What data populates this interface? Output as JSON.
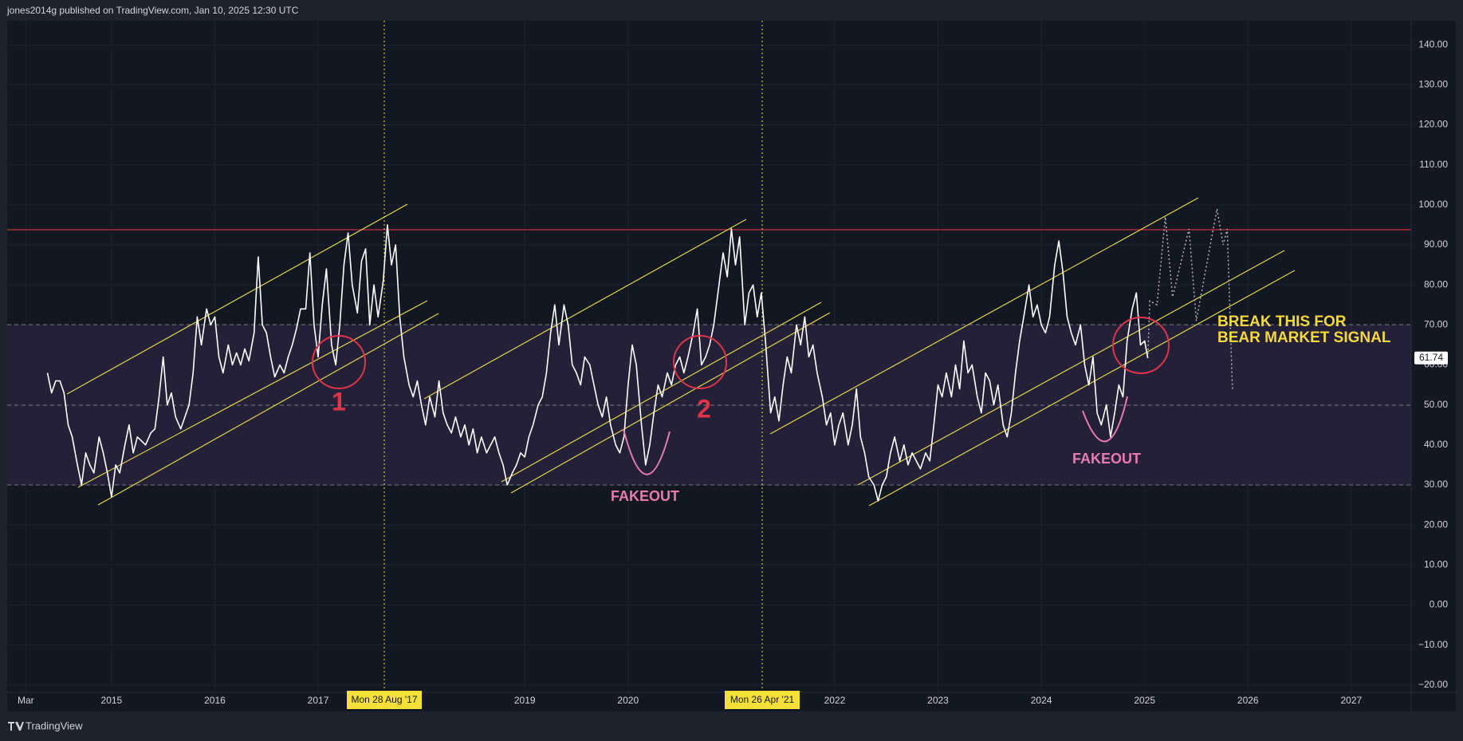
{
  "header": "jones2014g published on TradingView.com, Jan 10, 2025 12:30 UTC",
  "brand": "TradingView",
  "chart_data": {
    "type": "line",
    "x": [
      2014.38,
      2014.42,
      2014.46,
      2014.5,
      2014.54,
      2014.58,
      2014.62,
      2014.67,
      2014.71,
      2014.75,
      2014.79,
      2014.83,
      2014.88,
      2014.92,
      2014.96,
      2015.0,
      2015.04,
      2015.08,
      2015.13,
      2015.17,
      2015.21,
      2015.25,
      2015.33,
      2015.38,
      2015.42,
      2015.46,
      2015.5,
      2015.54,
      2015.58,
      2015.62,
      2015.67,
      2015.71,
      2015.75,
      2015.79,
      2015.83,
      2015.87,
      2015.92,
      2015.96,
      2016.0,
      2016.04,
      2016.08,
      2016.13,
      2016.17,
      2016.21,
      2016.25,
      2016.29,
      2016.33,
      2016.38,
      2016.42,
      2016.46,
      2016.5,
      2016.54,
      2016.58,
      2016.63,
      2016.67,
      2016.71,
      2016.75,
      2016.79,
      2016.83,
      2016.88,
      2016.92,
      2016.96,
      2017.0,
      2017.04,
      2017.08,
      2017.13,
      2017.17,
      2017.21,
      2017.25,
      2017.29,
      2017.33,
      2017.38,
      2017.42,
      2017.46,
      2017.5,
      2017.54,
      2017.58,
      2017.63,
      2017.67,
      2017.71,
      2017.75,
      2017.79,
      2017.83,
      2017.88,
      2017.92,
      2017.96,
      2018.0,
      2018.04,
      2018.08,
      2018.13,
      2018.17,
      2018.21,
      2018.25,
      2018.29,
      2018.33,
      2018.38,
      2018.42,
      2018.46,
      2018.5,
      2018.54,
      2018.58,
      2018.63,
      2018.67,
      2018.71,
      2018.75,
      2018.79,
      2018.83,
      2018.88,
      2018.92,
      2018.96,
      2019.0,
      2019.04,
      2019.08,
      2019.13,
      2019.17,
      2019.21,
      2019.25,
      2019.29,
      2019.33,
      2019.38,
      2019.42,
      2019.46,
      2019.5,
      2019.54,
      2019.58,
      2019.63,
      2019.67,
      2019.71,
      2019.75,
      2019.79,
      2019.83,
      2019.88,
      2019.92,
      2019.96,
      2020.0,
      2020.04,
      2020.08,
      2020.13,
      2020.17,
      2020.21,
      2020.25,
      2020.29,
      2020.33,
      2020.38,
      2020.42,
      2020.46,
      2020.5,
      2020.54,
      2020.58,
      2020.63,
      2020.67,
      2020.71,
      2020.75,
      2020.79,
      2020.83,
      2020.88,
      2020.92,
      2020.96,
      2021.0,
      2021.04,
      2021.08,
      2021.13,
      2021.17,
      2021.21,
      2021.25,
      2021.29,
      2021.33,
      2021.38,
      2021.42,
      2021.46,
      2021.5,
      2021.54,
      2021.58,
      2021.63,
      2021.67,
      2021.71,
      2021.75,
      2021.79,
      2021.83,
      2021.88,
      2021.92,
      2021.96,
      2022.0,
      2022.04,
      2022.08,
      2022.13,
      2022.17,
      2022.21,
      2022.25,
      2022.29,
      2022.33,
      2022.38,
      2022.42,
      2022.46,
      2022.5,
      2022.54,
      2022.58,
      2022.63,
      2022.67,
      2022.71,
      2022.75,
      2022.79,
      2022.83,
      2022.88,
      2022.92,
      2022.96,
      2023.0,
      2023.04,
      2023.08,
      2023.13,
      2023.17,
      2023.21,
      2023.25,
      2023.29,
      2023.33,
      2023.38,
      2023.42,
      2023.46,
      2023.5,
      2023.54,
      2023.58,
      2023.63,
      2023.67,
      2023.71,
      2023.75,
      2023.79,
      2023.83,
      2023.88,
      2023.92,
      2023.96,
      2024.0,
      2024.04,
      2024.08,
      2024.13,
      2024.17,
      2024.21,
      2024.25,
      2024.29,
      2024.33,
      2024.38,
      2024.42,
      2024.46,
      2024.5,
      2024.54,
      2024.58,
      2024.63,
      2024.67,
      2024.71,
      2024.75,
      2024.79,
      2024.83,
      2024.88,
      2024.92,
      2024.96,
      2025.0,
      2025.03
    ],
    "values": [
      58,
      53,
      56,
      56,
      53,
      45,
      42,
      35,
      30,
      38,
      35,
      33,
      42,
      38,
      33,
      27,
      35,
      33,
      40,
      45,
      38,
      42,
      40,
      43,
      44,
      52,
      62,
      50,
      53,
      47,
      44,
      47,
      50,
      58,
      72,
      65,
      74,
      70,
      72,
      62,
      58,
      65,
      60,
      63,
      60,
      64,
      61,
      68,
      87,
      70,
      68,
      62,
      57,
      60,
      58,
      62,
      65,
      69,
      74,
      74,
      88,
      70,
      62,
      75,
      84,
      65,
      60,
      70,
      85,
      93,
      80,
      73,
      86,
      89,
      70,
      80,
      72,
      81,
      95,
      85,
      90,
      72,
      62,
      55,
      52,
      56,
      50,
      45,
      52,
      47,
      56,
      48,
      45,
      43,
      47,
      42,
      45,
      40,
      44,
      38,
      42,
      38,
      40,
      42,
      38,
      35,
      30,
      33,
      35,
      38,
      37,
      42,
      45,
      50,
      52,
      58,
      68,
      75,
      65,
      75,
      70,
      60,
      58,
      55,
      62,
      60,
      55,
      50,
      47,
      52,
      45,
      40,
      38,
      42,
      55,
      65,
      60,
      45,
      35,
      40,
      48,
      55,
      52,
      58,
      55,
      60,
      62,
      58,
      62,
      68,
      74,
      60,
      62,
      65,
      70,
      80,
      88,
      82,
      94,
      85,
      92,
      70,
      78,
      80,
      72,
      78,
      66,
      48,
      52,
      46,
      55,
      62,
      58,
      70,
      65,
      72,
      62,
      65,
      58,
      52,
      45,
      48,
      40,
      45,
      48,
      40,
      45,
      54,
      42,
      38,
      32,
      30,
      26,
      30,
      32,
      38,
      42,
      36,
      40,
      35,
      38,
      36,
      34,
      38,
      36,
      45,
      55,
      52,
      58,
      52,
      60,
      54,
      66,
      58,
      60,
      52,
      48,
      58,
      56,
      50,
      55,
      45,
      42,
      48,
      58,
      66,
      72,
      80,
      72,
      75,
      70,
      68,
      72,
      85,
      91,
      83,
      72,
      68,
      65,
      70,
      60,
      55,
      62,
      48,
      45,
      50,
      42,
      48,
      55,
      52,
      66,
      74,
      78,
      65,
      66,
      61.74
    ],
    "color": "#ffffff",
    "projection": {
      "x": [
        2025.03,
        2025.05,
        2025.12,
        2025.2,
        2025.27,
        2025.43,
        2025.5,
        2025.7,
        2025.76,
        2025.8,
        2025.85
      ],
      "values": [
        61.74,
        76,
        75,
        97,
        77,
        94,
        71,
        99,
        90,
        94,
        54
      ],
      "color": "#b2b5be"
    },
    "xlim": [
      2013.99,
      2027.58
    ],
    "xticks": [
      {
        "value": 2014.17,
        "label": "Mar"
      },
      2015,
      2016,
      2017,
      2019,
      2020,
      2022,
      2023,
      2024,
      2025,
      2026,
      2027
    ],
    "ylim": [
      -21.84,
      146.02
    ],
    "yticks": [
      {
        "value": 140,
        "label": "140.00"
      },
      {
        "value": 130,
        "label": "130.00"
      },
      {
        "value": 120,
        "label": "120.00"
      },
      {
        "value": 110,
        "label": "110.00"
      },
      {
        "value": 100,
        "label": "100.00"
      },
      {
        "value": 90,
        "label": "90.00"
      },
      {
        "value": 80,
        "label": "80.00"
      },
      {
        "value": 70,
        "label": "70.00"
      },
      {
        "value": 60,
        "label": "60.00"
      },
      {
        "value": 50,
        "label": "50.00"
      },
      {
        "value": 40,
        "label": "40.00"
      },
      {
        "value": 30,
        "label": "30.00"
      },
      {
        "value": 20,
        "label": "20.00"
      },
      {
        "value": 10,
        "label": "10.00"
      },
      {
        "value": 0,
        "label": "0.00"
      },
      {
        "value": -10,
        "label": "−10.00"
      },
      {
        "value": -20,
        "label": "−20.00"
      }
    ],
    "grid": true,
    "annotations": [
      "1",
      "2",
      "FAKEOUT",
      "FAKEOUT",
      "BREAK THIS FOR",
      "BEAR MARKET SIGNAL"
    ],
    "crosshair_labels": [
      "Mon 28 Aug '17",
      "Mon 26 Apr '21"
    ]
  }
}
